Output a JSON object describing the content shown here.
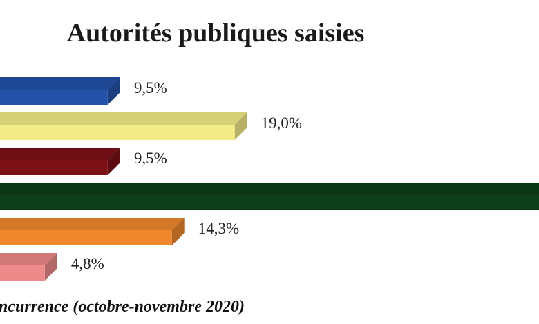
{
  "chart_data": {
    "type": "bar",
    "orientation": "horizontal",
    "title": "Autorités publiques saisies",
    "source_note": "ncurrence (octobre-novembre 2020)",
    "xlim": [
      0,
      50
    ],
    "grid": false,
    "legend": "none",
    "bars": [
      {
        "value": 9.5,
        "label": "9,5%",
        "color": "#2352a8"
      },
      {
        "value": 19.0,
        "label": "19,0%",
        "color": "#f3ec86"
      },
      {
        "value": 9.5,
        "label": "9,5%",
        "color": "#7c1118"
      },
      {
        "value": 42.9,
        "label": "",
        "color": "#0d3e1a"
      },
      {
        "value": 14.3,
        "label": "14,3%",
        "color": "#f0882e"
      },
      {
        "value": 4.8,
        "label": "4,8%",
        "color": "#ee8a8a"
      }
    ]
  }
}
